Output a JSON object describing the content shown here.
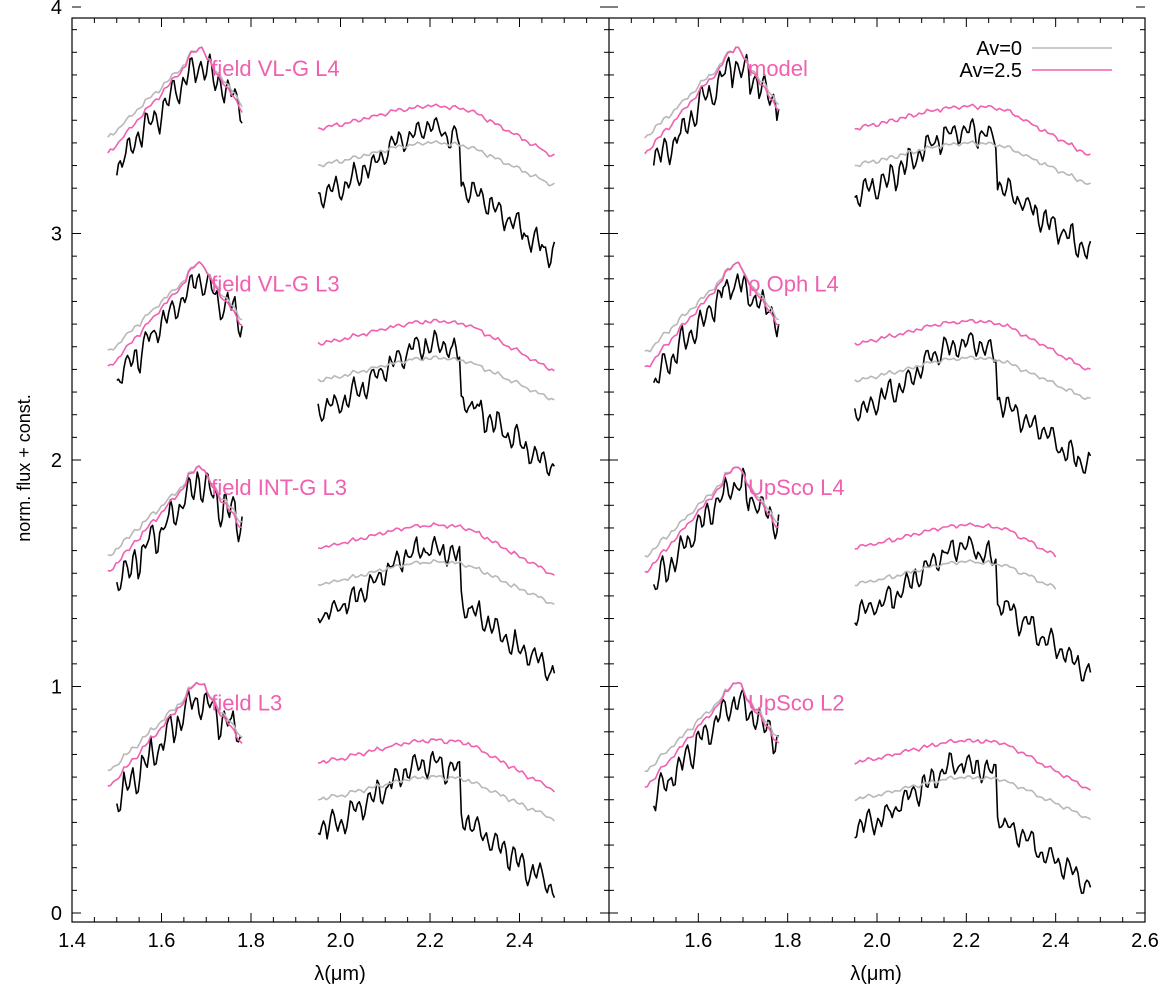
{
  "colors": {
    "observed": "#000000",
    "av0": "#b8b8b8",
    "av25": "#f060b0",
    "label": "#f060b0"
  },
  "legend": {
    "entries": [
      {
        "text": "Av=0",
        "series": "av0"
      },
      {
        "text": "Av=2.5",
        "series": "av25"
      }
    ]
  },
  "chart_data": [
    {
      "type": "line",
      "panel": "left",
      "xlabel": "λ(μm)",
      "ylabel": "norm. flux + const.",
      "xlim": [
        1.4,
        2.6
      ],
      "ylim": [
        0,
        4
      ],
      "xticks": [
        "1.4",
        "1.6",
        "1.8",
        "2.0",
        "2.2",
        "2.4"
      ],
      "yticks": [
        "0",
        "1",
        "2",
        "3",
        "4"
      ],
      "spectra": [
        {
          "label": "field VL-G L4",
          "offset": 2.8
        },
        {
          "label": "field VL-G L3",
          "offset": 1.85
        },
        {
          "label": "field INT-G L3",
          "offset": 0.95
        },
        {
          "label": "field L3",
          "offset": 0
        }
      ]
    },
    {
      "type": "line",
      "panel": "right",
      "xlabel": "λ(μm)",
      "xlim": [
        1.4,
        2.6
      ],
      "ylim": [
        0,
        4
      ],
      "xticks": [
        "1.6",
        "1.8",
        "2.0",
        "2.2",
        "2.4",
        "2.6"
      ],
      "legend_position": "top-right",
      "spectra": [
        {
          "label": "model",
          "offset": 2.8
        },
        {
          "label": "ρ Oph L4",
          "offset": 1.85
        },
        {
          "label": "UpSco L4",
          "offset": 0.95
        },
        {
          "label": "UpSco L2",
          "offset": 0
        }
      ]
    }
  ]
}
